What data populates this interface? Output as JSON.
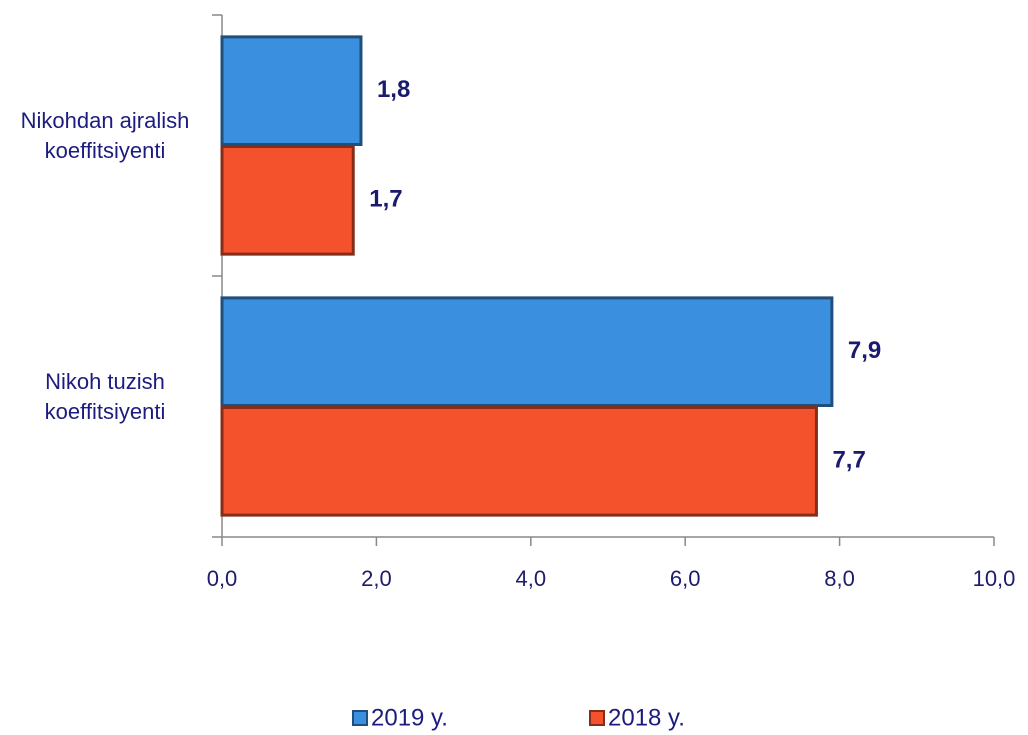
{
  "chart_data": {
    "type": "bar",
    "orientation": "horizontal",
    "categories": [
      "Nikohdan ajralish koeffitsiyenti",
      "Nikoh tuzish koeffitsiyenti"
    ],
    "series": [
      {
        "name": "2019 y.",
        "color": "#3a8fdf",
        "values": [
          1.8,
          7.9
        ],
        "value_labels": [
          "1,8",
          "7,9"
        ]
      },
      {
        "name": "2018 y.",
        "color": "#f4522d",
        "values": [
          1.7,
          7.7
        ],
        "value_labels": [
          "1,7",
          "7,7"
        ]
      }
    ],
    "xlim": [
      0,
      10
    ],
    "xticks": [
      {
        "value": 0,
        "label": "0,0"
      },
      {
        "value": 2,
        "label": "2,0"
      },
      {
        "value": 4,
        "label": "4,0"
      },
      {
        "value": 6,
        "label": "6,0"
      },
      {
        "value": 8,
        "label": "8,0"
      },
      {
        "value": 10,
        "label": "10,0"
      }
    ],
    "legend": "bottom"
  }
}
